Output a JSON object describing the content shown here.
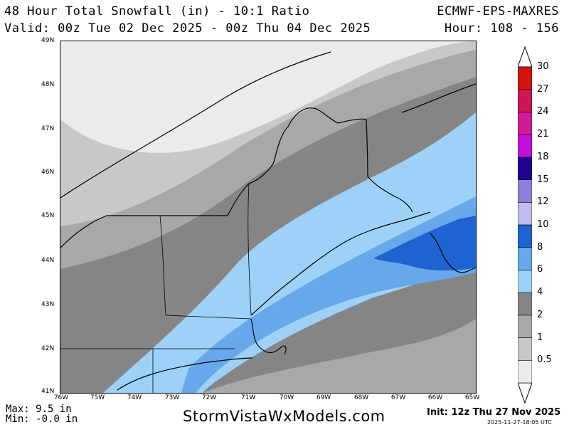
{
  "header": {
    "title": "48 Hour Total Snowfall (in) - 10:1 Ratio",
    "valid": "Valid: 00z Tue 02 Dec 2025 - 00z Thu 04 Dec 2025",
    "model": "ECMWF-EPS-MAXRES",
    "hour": "Hour: 108 - 156"
  },
  "map": {
    "lat_labels": [
      "49N",
      "48N",
      "47N",
      "46N",
      "45N",
      "44N",
      "43N",
      "42N",
      "41N"
    ],
    "lon_labels": [
      "76W",
      "75W",
      "74W",
      "73W",
      "72W",
      "71W",
      "70W",
      "69W",
      "68W",
      "67W",
      "66W",
      "65W"
    ]
  },
  "colorbar": {
    "levels": [
      {
        "label": "0.5",
        "color": "#ebebeb"
      },
      {
        "label": "1",
        "color": "#c8c8c8"
      },
      {
        "label": "2",
        "color": "#a8a8a8"
      },
      {
        "label": "4",
        "color": "#858585"
      },
      {
        "label": "6",
        "color": "#9dd1f8"
      },
      {
        "label": "8",
        "color": "#67a8ea"
      },
      {
        "label": "10",
        "color": "#1e63cf"
      },
      {
        "label": "12",
        "color": "#c0bcee"
      },
      {
        "label": "15",
        "color": "#8d7fd6"
      },
      {
        "label": "18",
        "color": "#22008f"
      },
      {
        "label": "21",
        "color": "#c40fd8"
      },
      {
        "label": "24",
        "color": "#d21a96"
      },
      {
        "label": "27",
        "color": "#cc1657"
      },
      {
        "label": "30",
        "color": "#d2150f"
      }
    ]
  },
  "footer": {
    "max": "Max: 9.5 in",
    "min": "Min: -0.0 in",
    "site": "StormVistaWxModels.com",
    "init": "Init: 12z Thu 27 Nov 2025",
    "stamp": "2025-11-27-18:05 UTC"
  }
}
